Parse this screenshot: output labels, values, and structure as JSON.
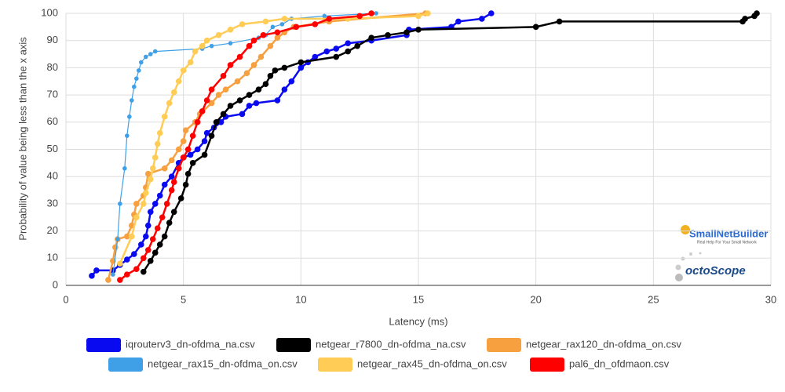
{
  "chart_data": {
    "type": "line",
    "xlabel": "Latency (ms)",
    "ylabel": "Probability of value being less than the x axis",
    "xlim": [
      0,
      30
    ],
    "xticks": [
      0,
      5,
      10,
      15,
      20,
      25,
      30
    ],
    "ylim": [
      0,
      100
    ],
    "yticks": [
      0,
      10,
      20,
      30,
      40,
      50,
      60,
      70,
      80,
      90,
      100
    ],
    "grid": true,
    "series": [
      {
        "name": "iqrouterv3_dn-ofdma_na.csv",
        "color": "#0a0af0",
        "x": [
          1.1,
          1.3,
          2.0,
          2.3,
          2.6,
          2.9,
          3.2,
          3.4,
          3.5,
          3.6,
          3.8,
          4.0,
          4.2,
          4.5,
          4.8,
          5.0,
          5.3,
          5.6,
          5.9,
          6.0,
          6.3,
          6.6,
          6.8,
          7.5,
          7.8,
          8.1,
          9.0,
          9.3,
          9.6,
          10.0,
          10.3,
          10.6,
          11.1,
          11.5,
          12.0,
          13.0,
          14.5,
          14.6,
          16.4,
          16.7,
          17.7,
          18.1
        ],
        "values": [
          3.5,
          5.5,
          5.5,
          7.5,
          9.5,
          11.5,
          15,
          18,
          22,
          27,
          30,
          33,
          37,
          40,
          45,
          47,
          48,
          50,
          53,
          56,
          58,
          60,
          62,
          63,
          66,
          67,
          68,
          72,
          75,
          80,
          82,
          84,
          86,
          87,
          89,
          90,
          92,
          94,
          95,
          97,
          98,
          100
        ]
      },
      {
        "name": "netgear_r7800_dn-ofdma_na.csv",
        "color": "#000000",
        "x": [
          3.3,
          3.6,
          3.8,
          4.0,
          4.2,
          4.4,
          4.6,
          4.9,
          5.1,
          5.2,
          5.4,
          5.9,
          6.2,
          6.4,
          6.7,
          7.0,
          7.4,
          7.8,
          8.2,
          8.5,
          8.7,
          8.9,
          9.3,
          10.0,
          11.5,
          12.0,
          12.4,
          13.0,
          13.7,
          14.5,
          15.0,
          20.0,
          21.0,
          28.8,
          28.9,
          29.3,
          29.4
        ],
        "values": [
          5,
          9,
          12,
          15,
          18,
          23,
          27,
          32,
          37,
          41,
          45,
          48,
          55,
          60,
          63,
          66,
          68,
          70,
          72,
          74,
          77,
          79,
          80,
          82,
          84,
          86,
          88,
          91,
          92,
          93,
          94,
          95,
          97,
          97,
          98,
          99,
          100
        ]
      },
      {
        "name": "netgear_rax120_dn-ofdma_on.csv",
        "color": "#f7a040",
        "x": [
          1.8,
          2.0,
          2.1,
          2.2,
          2.6,
          2.8,
          2.9,
          3.0,
          3.3,
          3.4,
          3.5,
          4.2,
          4.5,
          4.8,
          5.0,
          5.1,
          5.5,
          5.7,
          6.2,
          6.5,
          6.8,
          7.3,
          7.7,
          8.0,
          8.3,
          8.7,
          9.0,
          9.3,
          9.7,
          11.2,
          15.3
        ],
        "values": [
          2,
          9,
          14,
          17,
          18,
          22,
          26,
          30,
          33,
          36,
          41,
          43,
          46,
          50,
          53,
          57,
          60,
          63,
          67,
          70,
          72,
          75,
          78,
          81,
          84,
          88,
          91,
          93,
          95,
          97,
          100
        ]
      },
      {
        "name": "netgear_rax15_dn-ofdma_on.csv",
        "color": "#3fa0e8",
        "x": [
          2.0,
          2.2,
          2.3,
          2.5,
          2.6,
          2.7,
          2.8,
          2.9,
          3.0,
          3.1,
          3.2,
          3.4,
          3.6,
          3.8,
          5.8,
          6.2,
          7.0,
          8.2,
          8.5,
          8.8,
          9.2,
          9.6,
          11.0,
          13.2
        ],
        "values": [
          4,
          17,
          30,
          43,
          55,
          62,
          68,
          73,
          76,
          79,
          82,
          84,
          85,
          86,
          87,
          88,
          89,
          91,
          92,
          95,
          96,
          98,
          99,
          100
        ]
      },
      {
        "name": "netgear_rax45_dn-ofdma_on.csv",
        "color": "#ffcc55",
        "x": [
          2.3,
          2.8,
          3.0,
          3.3,
          3.4,
          3.6,
          3.7,
          3.8,
          3.9,
          4.0,
          4.2,
          4.4,
          4.6,
          4.8,
          5.0,
          5.3,
          5.5,
          5.8,
          6.0,
          6.5,
          7.0,
          7.5,
          8.5,
          9.3,
          12.0,
          15.0,
          15.4
        ],
        "values": [
          8,
          18,
          25,
          30,
          34,
          39,
          43,
          47,
          52,
          56,
          62,
          67,
          71,
          75,
          79,
          82,
          86,
          88,
          90,
          92,
          94,
          96,
          97,
          98,
          98,
          99,
          100
        ]
      },
      {
        "name": "pal6_dn_ofdmaon.csv",
        "color": "#ff0000",
        "x": [
          2.3,
          2.6,
          3.0,
          3.3,
          3.5,
          3.7,
          3.9,
          4.1,
          4.3,
          4.5,
          4.6,
          4.8,
          5.0,
          5.2,
          5.4,
          5.6,
          5.8,
          6.0,
          6.2,
          6.7,
          7.0,
          7.4,
          7.8,
          8.0,
          8.4,
          9.0,
          9.8,
          10.6,
          11.2,
          12.5,
          13.0
        ],
        "values": [
          2,
          4,
          6,
          10,
          13,
          17,
          21,
          25,
          30,
          35,
          38,
          43,
          47,
          50,
          55,
          60,
          64,
          68,
          72,
          77,
          81,
          84,
          88,
          90,
          92,
          93,
          95,
          96,
          98,
          99,
          100
        ]
      }
    ]
  },
  "logos": {
    "brand": "SmallNetBuilder",
    "tagline": "Real Help For Your Small Network",
    "partner": "octoScope"
  }
}
